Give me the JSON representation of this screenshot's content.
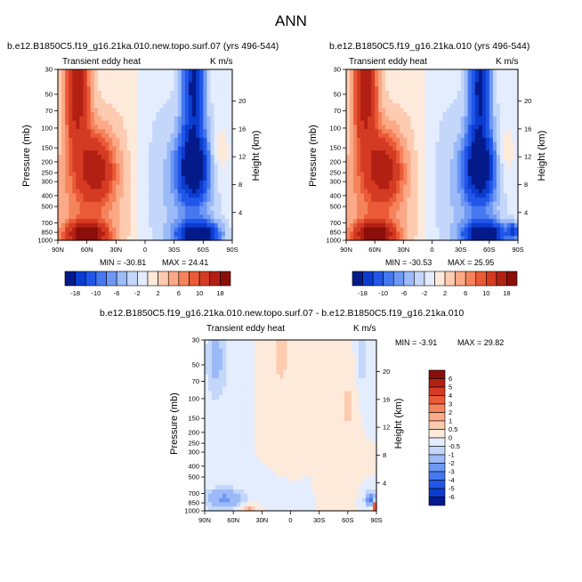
{
  "page_title": "ANN",
  "chart_data": [
    {
      "type": "heatmap",
      "title": "b.e12.B1850C5.f19_g16.21ka.010.new.topo.surf.07 (yrs 496-544)",
      "variable": "Transient eddy heat",
      "units": "K m/s",
      "xlabel": "",
      "ylabel": "Pressure (mb)",
      "ylabel_right": "Height (km)",
      "x_ticks": [
        "90N",
        "60N",
        "30N",
        "0",
        "30S",
        "60S",
        "90S"
      ],
      "y_ticks": [
        "30",
        "50",
        "70",
        "100",
        "150",
        "200",
        "250",
        "300",
        "400",
        "500",
        "700",
        "850",
        "1000"
      ],
      "y_right_ticks": [
        "20",
        "16",
        "12",
        "8",
        "4"
      ],
      "min_label": "MIN = -30.81",
      "max_label": "MAX = 24.41",
      "min": -30.81,
      "max": 24.41,
      "colorbar_levels": [
        "-18",
        "-10",
        "-6",
        "-2",
        "2",
        "6",
        "10",
        "18"
      ],
      "colorbar_colors": [
        "#051a8a",
        "#0a3ccf",
        "#2156e8",
        "#4578f0",
        "#6e98f4",
        "#9bbaf7",
        "#c4d7fa",
        "#e4edfd",
        "#feeadb",
        "#fdcbb0",
        "#fba986",
        "#f5835c",
        "#ea5a37",
        "#d43b22",
        "#b22014",
        "#8a0f0a"
      ],
      "features": [
        {
          "lat": 70,
          "p": 40,
          "v": 16,
          "sx": 9,
          "sy": 0.95
        },
        {
          "lat": 50,
          "p": 230,
          "v": 12,
          "sx": 13,
          "sy": 0.5
        },
        {
          "lat": 60,
          "p": 900,
          "v": 20,
          "sx": 14,
          "sy": 0.18
        },
        {
          "lat": 65,
          "p": 450,
          "v": 6,
          "sx": 28,
          "sy": 1.3
        },
        {
          "lat": -50,
          "p": 40,
          "v": -18,
          "sx": 8,
          "sy": 1.0
        },
        {
          "lat": -50,
          "p": 230,
          "v": -20,
          "sx": 11,
          "sy": 0.45
        },
        {
          "lat": -55,
          "p": 900,
          "v": -24,
          "sx": 14,
          "sy": 0.18
        },
        {
          "lat": -45,
          "p": 400,
          "v": -5,
          "sx": 26,
          "sy": 1.4
        },
        {
          "lat": 20,
          "p": 300,
          "v": 1.5,
          "sx": 18,
          "sy": 2.2
        },
        {
          "lat": -5,
          "p": 200,
          "v": -1.5,
          "sx": 15,
          "sy": 2.4
        },
        {
          "lat": -75,
          "p": 180,
          "v": 3,
          "sx": 8,
          "sy": 0.5
        }
      ]
    },
    {
      "type": "heatmap",
      "title": "b.e12.B1850C5.f19_g16.21ka.010 (yrs 496-544)",
      "variable": "Transient eddy heat",
      "units": "K m/s",
      "xlabel": "",
      "ylabel": "Pressure (mb)",
      "ylabel_right": "Height (km)",
      "x_ticks": [
        "90N",
        "60N",
        "30N",
        "0",
        "30S",
        "60S",
        "90S"
      ],
      "y_ticks": [
        "30",
        "50",
        "70",
        "100",
        "150",
        "200",
        "250",
        "300",
        "400",
        "500",
        "700",
        "850",
        "1000"
      ],
      "y_right_ticks": [
        "20",
        "16",
        "12",
        "8",
        "4"
      ],
      "min_label": "MIN = -30.53",
      "max_label": "MAX = 25.95",
      "min": -30.53,
      "max": 25.95,
      "colorbar_levels": [
        "-18",
        "-10",
        "-6",
        "-2",
        "2",
        "6",
        "10",
        "18"
      ],
      "colorbar_colors": [
        "#051a8a",
        "#0a3ccf",
        "#2156e8",
        "#4578f0",
        "#6e98f4",
        "#9bbaf7",
        "#c4d7fa",
        "#e4edfd",
        "#feeadb",
        "#fdcbb0",
        "#fba986",
        "#f5835c",
        "#ea5a37",
        "#d43b22",
        "#b22014",
        "#8a0f0a"
      ],
      "features": [
        {
          "lat": 70,
          "p": 40,
          "v": 16,
          "sx": 9,
          "sy": 0.95
        },
        {
          "lat": 50,
          "p": 230,
          "v": 12,
          "sx": 13,
          "sy": 0.5
        },
        {
          "lat": 60,
          "p": 900,
          "v": 20,
          "sx": 14,
          "sy": 0.18
        },
        {
          "lat": 65,
          "p": 450,
          "v": 6,
          "sx": 28,
          "sy": 1.3
        },
        {
          "lat": -50,
          "p": 40,
          "v": -18,
          "sx": 8,
          "sy": 1.0
        },
        {
          "lat": -50,
          "p": 230,
          "v": -20,
          "sx": 11,
          "sy": 0.45
        },
        {
          "lat": -55,
          "p": 900,
          "v": -24,
          "sx": 14,
          "sy": 0.18
        },
        {
          "lat": -45,
          "p": 400,
          "v": -5,
          "sx": 26,
          "sy": 1.4
        },
        {
          "lat": 20,
          "p": 300,
          "v": 1.5,
          "sx": 18,
          "sy": 2.2
        },
        {
          "lat": -5,
          "p": 200,
          "v": -1.5,
          "sx": 15,
          "sy": 2.4
        },
        {
          "lat": -75,
          "p": 180,
          "v": 3,
          "sx": 8,
          "sy": 0.5
        },
        {
          "lat": -85,
          "p": 820,
          "v": -12,
          "sx": 4,
          "sy": 0.12
        }
      ]
    },
    {
      "type": "heatmap",
      "title": "b.e12.B1850C5.f19_g16.21ka.010.new.topo.surf.07 - b.e12.B1850C5.f19_g16.21ka.010",
      "variable": "Transient eddy heat",
      "units": "K m/s",
      "xlabel": "",
      "ylabel": "Pressure (mb)",
      "ylabel_right": "Height (km)",
      "x_ticks": [
        "90N",
        "60N",
        "30N",
        "0",
        "30S",
        "60S",
        "90S"
      ],
      "y_ticks": [
        "30",
        "50",
        "70",
        "100",
        "150",
        "200",
        "250",
        "300",
        "400",
        "500",
        "700",
        "850",
        "1000"
      ],
      "y_right_ticks": [
        "20",
        "16",
        "12",
        "8",
        "4"
      ],
      "min_label": "MIN = -3.91",
      "max_label": "MAX = 29.82",
      "min": -3.91,
      "max": 29.82,
      "colorbar_levels": [
        "6",
        "5",
        "4",
        "3",
        "2",
        "1",
        "0.5",
        "0",
        "-0.5",
        "-1",
        "-2",
        "-3",
        "-4",
        "-5",
        "-6"
      ],
      "colorbar_colors": [
        "#8a0f0a",
        "#b22014",
        "#d43b22",
        "#ea5a37",
        "#f5835c",
        "#fba986",
        "#fdcbb0",
        "#feeadb",
        "#e4edfd",
        "#c4d7fa",
        "#9bbaf7",
        "#6e98f4",
        "#4578f0",
        "#2156e8",
        "#0a3ccf",
        "#051a8a"
      ],
      "features": [
        {
          "lat": 78,
          "p": 45,
          "v": -1.3,
          "sx": 8,
          "sy": 0.6
        },
        {
          "lat": 70,
          "p": 780,
          "v": -2.2,
          "sx": 14,
          "sy": 0.15
        },
        {
          "lat": 45,
          "p": 960,
          "v": 1.2,
          "sx": 6,
          "sy": 0.06
        },
        {
          "lat": 10,
          "p": 40,
          "v": 0.8,
          "sx": 6,
          "sy": 0.5
        },
        {
          "lat": -60,
          "p": 120,
          "v": 0.6,
          "sx": 6,
          "sy": 0.6
        },
        {
          "lat": -75,
          "p": 40,
          "v": -1.0,
          "sx": 4,
          "sy": 0.5
        },
        {
          "lat": -85,
          "p": 800,
          "v": -4,
          "sx": 4,
          "sy": 0.1
        },
        {
          "lat": -88,
          "p": 900,
          "v": 6,
          "sx": 2,
          "sy": 0.08
        }
      ]
    }
  ]
}
